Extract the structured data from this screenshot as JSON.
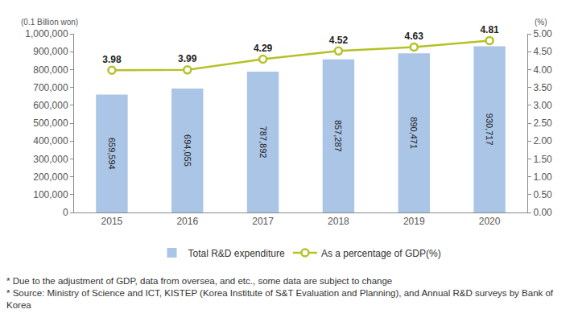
{
  "chart_data": {
    "type": "bar",
    "categories": [
      "2015",
      "2016",
      "2017",
      "2018",
      "2019",
      "2020"
    ],
    "series": [
      {
        "name": "Total R&D expenditure",
        "type": "bar",
        "color": "#aac5e6",
        "values": [
          659594,
          694055,
          787892,
          857287,
          890471,
          930717
        ],
        "value_labels": [
          "659,594",
          "694,055",
          "787,892",
          "857,287",
          "890,471",
          "930,717"
        ]
      },
      {
        "name": "As a percentage of GDP(%)",
        "type": "line",
        "axis": "y2",
        "color": "#b4c226",
        "marker": "hollow_circle",
        "values": [
          3.98,
          3.99,
          4.29,
          4.52,
          4.63,
          4.81
        ]
      }
    ],
    "ylabel": "(0.1 Billion won)",
    "y2label": "(%)",
    "ylim": [
      0,
      1000000
    ],
    "yticks": [
      0,
      {
        "value": 100000,
        "label": "100,000"
      },
      {
        "value": 200000,
        "label": "200,000"
      },
      {
        "value": 300000,
        "label": "300,000"
      },
      {
        "value": 400000,
        "label": "400,000"
      },
      {
        "value": 500000,
        "label": "500,000"
      },
      {
        "value": 600000,
        "label": "600,000"
      },
      {
        "value": 700000,
        "label": "700,000"
      },
      {
        "value": 800000,
        "label": "800,000"
      },
      {
        "value": 900000,
        "label": "900,000"
      },
      {
        "value": 1000000,
        "label": "1,000,000"
      }
    ],
    "y2lim": [
      0,
      5
    ],
    "y2ticks": [
      {
        "value": 0,
        "label": "0.00"
      },
      {
        "value": 0.5,
        "label": "0.50"
      },
      {
        "value": 1,
        "label": "1.00"
      },
      {
        "value": 1.5,
        "label": "1.50"
      },
      {
        "value": 2,
        "label": "2.00"
      },
      {
        "value": 2.5,
        "label": "2.50"
      },
      {
        "value": 3,
        "label": "3.00"
      },
      {
        "value": 3.5,
        "label": "3.50"
      },
      {
        "value": 4,
        "label": "4.00"
      },
      {
        "value": 4.5,
        "label": "4.50"
      },
      {
        "value": 5,
        "label": "5.00"
      }
    ],
    "data_labels": true,
    "grid": false,
    "legend": "bottom",
    "notes": [
      "* Due to the adjustment of GDP, data from oversea, and etc., some data are subject to change",
      "* Source: Ministry of Science and ICT, KISTEP (Korea Institute of S&T Evaluation and Planning), and Annual R&D surveys by Bank of Korea"
    ]
  }
}
